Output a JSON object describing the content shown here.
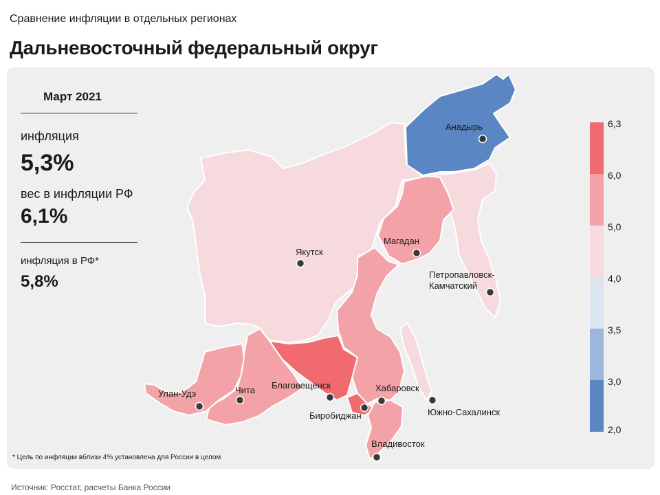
{
  "header": {
    "subtitle": "Сравнение инфляции  в отдельных регионах",
    "title": "Дальневосточный федеральный округ"
  },
  "summary": {
    "period": "Март 2021",
    "inflation_label": "инфляция",
    "inflation_value": "5,3%",
    "weight_label": "вес в инфляции  РФ",
    "weight_value": "6,1%",
    "rf_inflation_label": "инфляция  в РФ*",
    "rf_inflation_value": "5,8%"
  },
  "colors": {
    "c_2_3": "#5a87c4",
    "c_3_35": "#9cb7db",
    "c_35_4": "#dce4f2",
    "c_4_5": "#f7dadd",
    "c_5_6": "#f3a3a7",
    "c_6_63": "#f06a6f"
  },
  "legend": {
    "ticks": [
      "6,3",
      "6,0",
      "5,0",
      "4,0",
      "3,5",
      "3,0",
      "2,0"
    ]
  },
  "cities": {
    "anadyr": "Анадырь",
    "yakutsk": "Якутск",
    "magadan": "Магадан",
    "petropavlovsk_1": "Петропавловск-",
    "petropavlovsk_2": "Камчатский",
    "ulan_ude": "Улан-Удэ",
    "chita": "Чита",
    "blagoveshchensk": "Благовещенск",
    "khabarovsk": "Хабаровск",
    "birobidzhan": "Биробиджан",
    "yuzhno": "Южно-Сахалинск",
    "vladivostok": "Владивосток"
  },
  "footnote": "* Цель по инфляции вблизи 4% установлена для России в целом",
  "source": "Источник: Росстат, расчеты Банка России"
}
